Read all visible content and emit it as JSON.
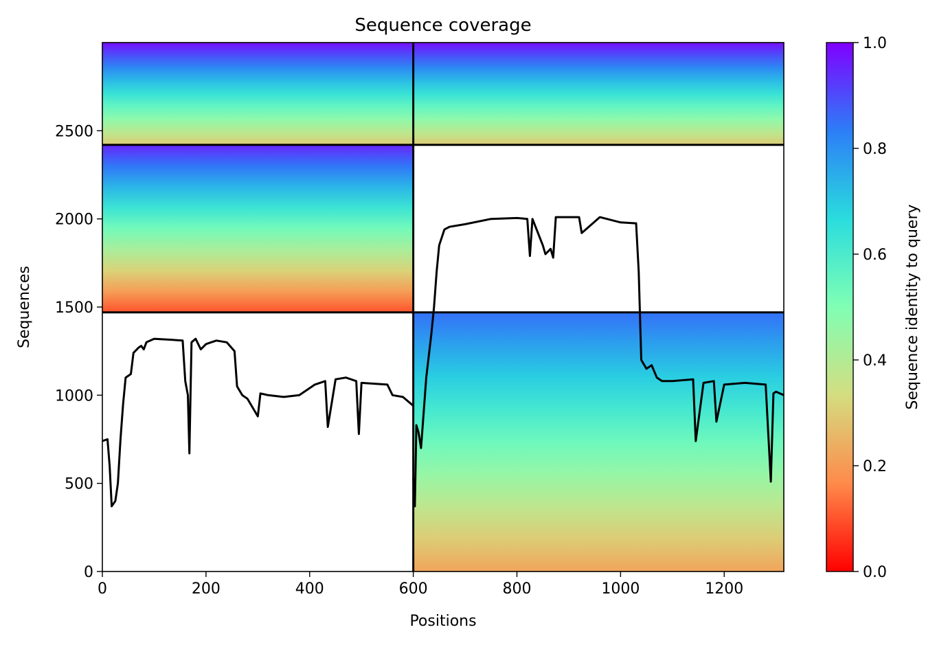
{
  "chart_data": {
    "type": "heatmap",
    "title": "Sequence coverage",
    "xlabel": "Positions",
    "ylabel": "Sequences",
    "xlim": [
      0,
      1315
    ],
    "ylim": [
      0,
      3000
    ],
    "x_ticks": [
      0,
      200,
      400,
      600,
      800,
      1000,
      1200
    ],
    "y_ticks": [
      0,
      500,
      1000,
      1500,
      2000,
      2500
    ],
    "colorbar": {
      "label": "Sequence identity to query",
      "colormap": "rainbow",
      "range": [
        0,
        1
      ],
      "ticks": [
        "0.0",
        "0.2",
        "0.4",
        "0.6",
        "0.8",
        "1.0"
      ],
      "colors": [
        "#ff0000",
        "#ff8a4a",
        "#d4dd80",
        "#80ffb4",
        "#2adddd",
        "#2c7ef7",
        "#8000ff"
      ]
    },
    "block_boundaries": {
      "x": [
        600
      ],
      "y": [
        1470,
        2420
      ]
    },
    "blocks": [
      {
        "x_range": [
          0,
          600
        ],
        "y_range": [
          2420,
          3000
        ],
        "identity_top": 0.98,
        "identity_bottom": 0.3
      },
      {
        "x_range": [
          600,
          1315
        ],
        "y_range": [
          2420,
          3000
        ],
        "identity_top": 0.98,
        "identity_bottom": 0.3
      },
      {
        "x_range": [
          0,
          600
        ],
        "y_range": [
          1470,
          2420
        ],
        "identity_top": 0.95,
        "identity_bottom": 0.1
      },
      {
        "x_range": [
          600,
          1315
        ],
        "y_range": [
          1470,
          2420
        ],
        "identity_top": null,
        "identity_bottom": null
      },
      {
        "x_range": [
          0,
          600
        ],
        "y_range": [
          0,
          1470
        ],
        "identity_top": null,
        "identity_bottom": null
      },
      {
        "x_range": [
          600,
          1315
        ],
        "y_range": [
          0,
          1470
        ],
        "identity_top": 0.85,
        "identity_bottom": 0.22
      }
    ],
    "coverage_lines": [
      {
        "x": [
          0,
          10,
          14,
          18,
          25,
          30,
          35,
          40,
          45,
          55,
          60,
          70,
          75,
          80,
          85,
          100,
          130,
          155,
          160,
          165,
          168,
          172,
          180,
          190,
          200,
          210,
          220,
          240,
          255,
          260,
          270,
          280,
          300,
          305,
          320,
          350,
          380,
          410,
          430,
          435,
          450,
          470,
          490,
          495,
          500,
          550,
          560,
          580,
          600
        ],
        "y": [
          740,
          750,
          600,
          370,
          400,
          500,
          750,
          950,
          1100,
          1120,
          1240,
          1270,
          1280,
          1260,
          1300,
          1320,
          1315,
          1310,
          1080,
          1000,
          670,
          1300,
          1320,
          1260,
          1290,
          1300,
          1310,
          1300,
          1250,
          1050,
          1000,
          980,
          880,
          1010,
          1000,
          990,
          1000,
          1060,
          1080,
          820,
          1090,
          1100,
          1080,
          780,
          1070,
          1060,
          1000,
          990,
          940
        ]
      },
      {
        "x": [
          600,
          603,
          606,
          610,
          615,
          620,
          625,
          635,
          640,
          645,
          650,
          660,
          670,
          700,
          750,
          800,
          820,
          825,
          830,
          850,
          855,
          865,
          870,
          875,
          885,
          920,
          925,
          960,
          1000,
          1030,
          1035,
          1040,
          1050,
          1060,
          1070,
          1080,
          1100,
          1140,
          1145,
          1160,
          1180,
          1185,
          1200,
          1240,
          1280,
          1290,
          1295,
          1300,
          1315
        ],
        "y": [
          530,
          370,
          830,
          790,
          700,
          900,
          1100,
          1350,
          1500,
          1700,
          1850,
          1940,
          1955,
          1970,
          2000,
          2005,
          2000,
          1790,
          2000,
          1850,
          1800,
          1830,
          1780,
          2010,
          2010,
          2010,
          1920,
          2010,
          1980,
          1975,
          1700,
          1200,
          1150,
          1170,
          1100,
          1080,
          1080,
          1090,
          740,
          1070,
          1080,
          850,
          1060,
          1070,
          1060,
          510,
          1010,
          1020,
          1000
        ]
      }
    ]
  }
}
